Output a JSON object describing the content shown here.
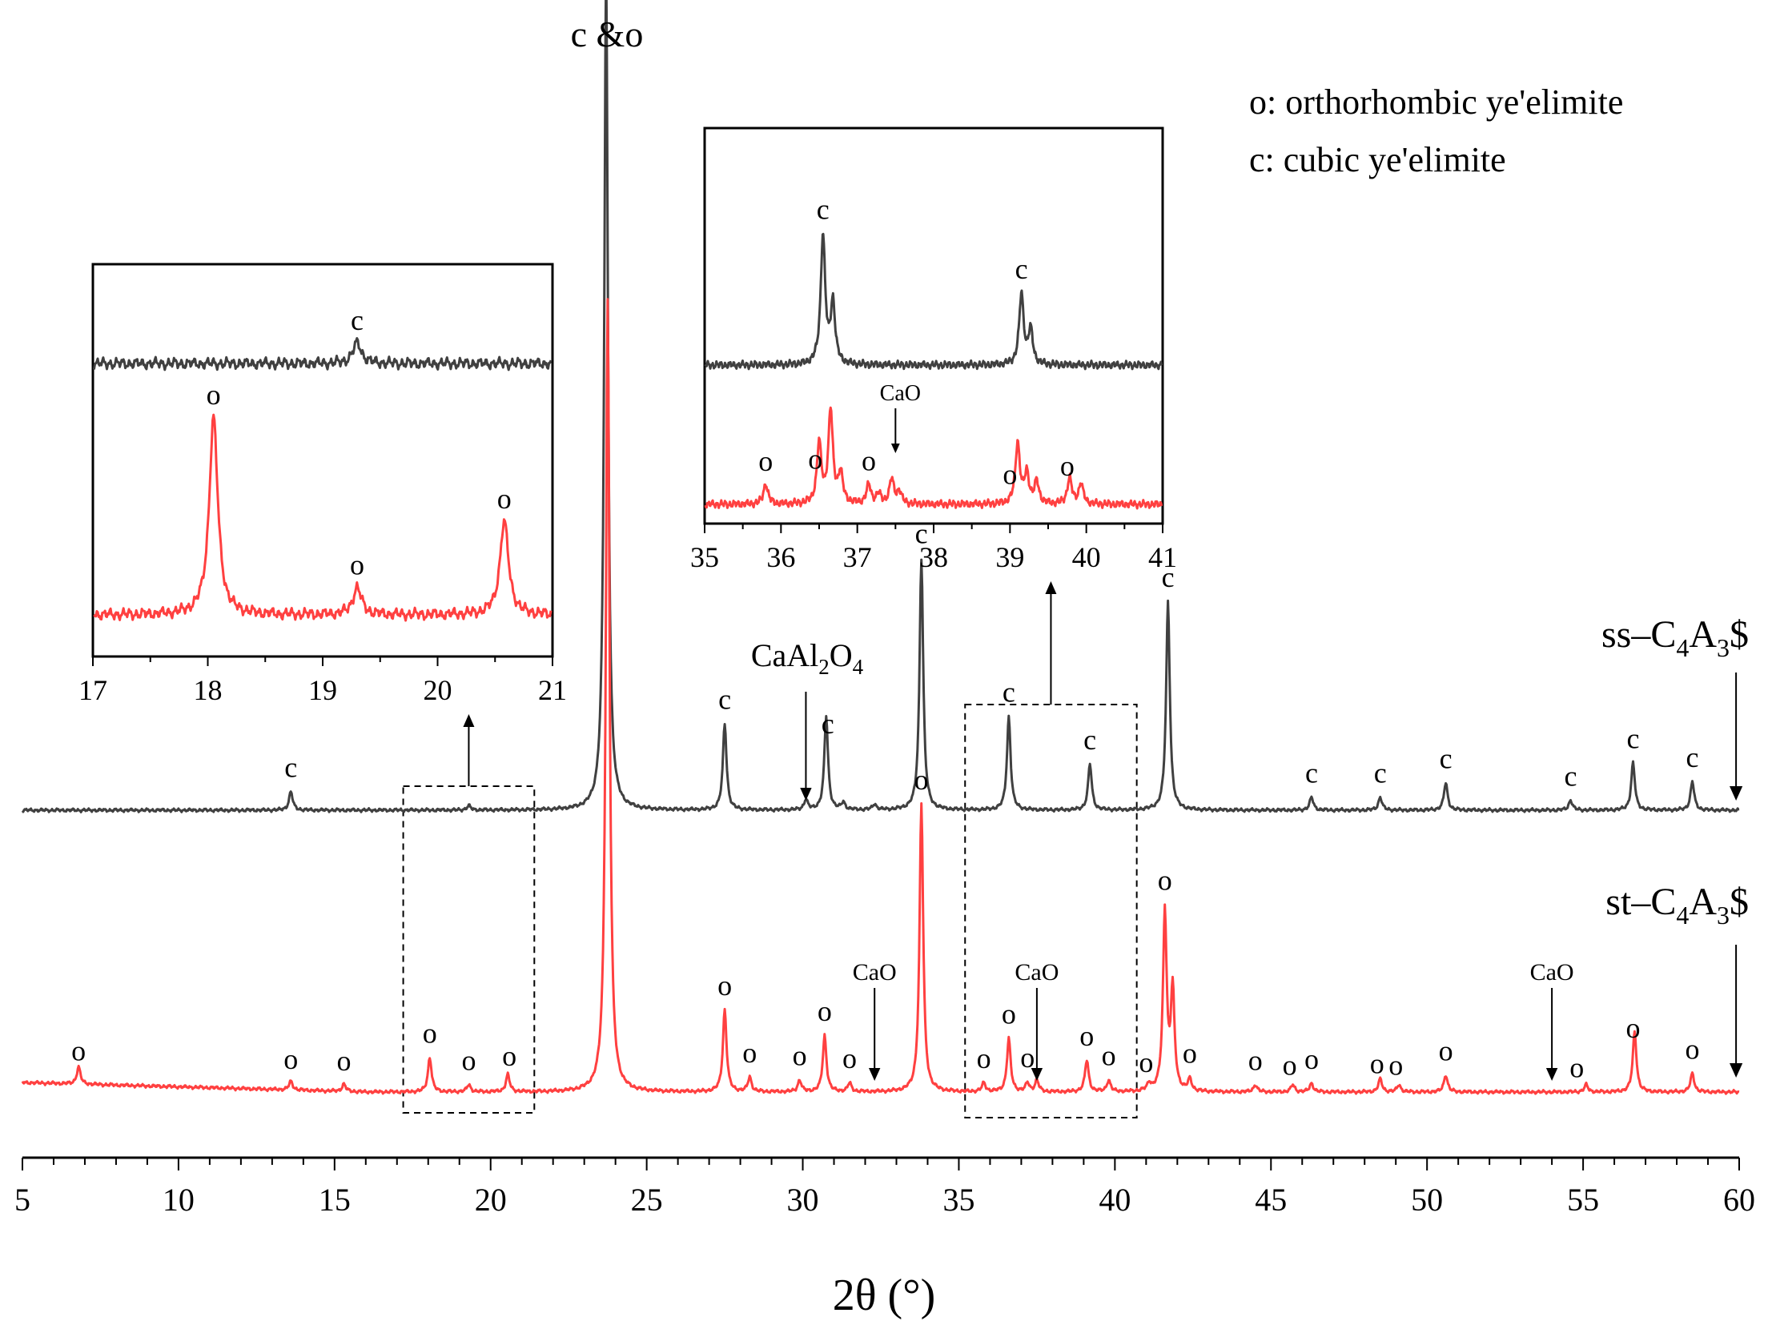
{
  "chart_data": {
    "type": "line",
    "title": "",
    "xlabel": "2θ (°)",
    "ylabel": "",
    "xlim": [
      5,
      60
    ],
    "xticks": [
      5,
      10,
      15,
      20,
      25,
      30,
      35,
      40,
      45,
      50,
      55,
      60
    ],
    "legend_text": [
      "o: orthorhombic ye'elimite",
      "c: cubic ye'elimite"
    ],
    "series": [
      {
        "name": "ss–C4A3$",
        "label_main": "ss–C",
        "label_sub1": "4",
        "label_mid": "A",
        "label_sub2": "3",
        "label_end": "$",
        "color": "#404040",
        "baseline": 0,
        "peaks": [
          [
            13.6,
            1.3
          ],
          [
            19.3,
            0.3
          ],
          [
            23.7,
            59
          ],
          [
            27.5,
            6
          ],
          [
            30.1,
            0.7
          ],
          [
            30.75,
            6.5
          ],
          [
            31.3,
            0.5
          ],
          [
            32.3,
            0.4
          ],
          [
            33.8,
            17.5
          ],
          [
            36.6,
            6.5
          ],
          [
            39.2,
            3.2
          ],
          [
            41.7,
            14.5
          ],
          [
            46.3,
            0.9
          ],
          [
            48.5,
            0.9
          ],
          [
            50.6,
            1.9
          ],
          [
            54.6,
            0.7
          ],
          [
            56.6,
            3.3
          ],
          [
            58.5,
            2.0
          ]
        ],
        "peak_labels": [
          [
            "c",
            13.6
          ],
          [
            "c",
            27.5
          ],
          [
            "c",
            30.8
          ],
          [
            "c",
            33.8
          ],
          [
            "c",
            36.6
          ],
          [
            "c",
            39.2
          ],
          [
            "c",
            41.7
          ],
          [
            "c",
            46.3
          ],
          [
            "c",
            48.5
          ],
          [
            "c",
            50.6
          ],
          [
            "c",
            54.6
          ],
          [
            "c",
            56.6
          ],
          [
            "c",
            58.5
          ]
        ]
      },
      {
        "name": "st–C4A3$",
        "label_main": "st–C",
        "label_sub1": "4",
        "label_mid": "A",
        "label_sub2": "3",
        "label_end": "$",
        "color": "#ff4040",
        "baseline": 0,
        "peaks": [
          [
            6.8,
            1.2
          ],
          [
            13.6,
            0.6
          ],
          [
            15.3,
            0.5
          ],
          [
            18.05,
            2.4
          ],
          [
            19.3,
            0.5
          ],
          [
            20.55,
            1.2
          ],
          [
            23.75,
            55
          ],
          [
            27.5,
            5.7
          ],
          [
            28.3,
            1.0
          ],
          [
            29.9,
            0.8
          ],
          [
            30.7,
            3.9
          ],
          [
            31.5,
            0.6
          ],
          [
            33.8,
            20
          ],
          [
            35.8,
            0.6
          ],
          [
            36.6,
            3.7
          ],
          [
            37.2,
            0.6
          ],
          [
            37.5,
            0.8
          ],
          [
            39.1,
            2.2
          ],
          [
            39.8,
            0.8
          ],
          [
            41.1,
            0.5
          ],
          [
            41.6,
            12.5
          ],
          [
            41.85,
            7
          ],
          [
            42.4,
            0.8
          ],
          [
            44.5,
            0.5
          ],
          [
            45.7,
            0.5
          ],
          [
            46.3,
            0.6
          ],
          [
            48.5,
            0.9
          ],
          [
            49.1,
            0.5
          ],
          [
            50.6,
            1.2
          ],
          [
            55.1,
            0.5
          ],
          [
            56.65,
            4.2
          ],
          [
            58.5,
            1.3
          ]
        ],
        "peak_labels": [
          [
            "o",
            6.8
          ],
          [
            "o",
            13.6
          ],
          [
            "o",
            15.3
          ],
          [
            "o",
            18.05
          ],
          [
            "o",
            19.3
          ],
          [
            "o",
            20.6
          ],
          [
            "o",
            27.5
          ],
          [
            "o",
            28.3
          ],
          [
            "o",
            29.9
          ],
          [
            "o",
            30.7
          ],
          [
            "o",
            31.5
          ],
          [
            "o",
            33.8
          ],
          [
            "o",
            35.8
          ],
          [
            "o",
            36.6
          ],
          [
            "o",
            37.2
          ],
          [
            "o",
            39.1
          ],
          [
            "o",
            39.8
          ],
          [
            "o",
            41.0
          ],
          [
            "o",
            41.6
          ],
          [
            "o",
            42.4
          ],
          [
            "o",
            44.5
          ],
          [
            "o",
            45.6
          ],
          [
            "o",
            46.3
          ],
          [
            "o",
            48.4
          ],
          [
            "o",
            49.0
          ],
          [
            "o",
            50.6
          ],
          [
            "o",
            54.8
          ],
          [
            "o",
            56.6
          ],
          [
            "o",
            58.5
          ]
        ]
      }
    ],
    "main_annotations": {
      "top_peak_label": "c &o",
      "caal2o4": {
        "main": "CaAl",
        "sub1": "2",
        "mid": "O",
        "sub2": "4",
        "x": 30.1
      },
      "cao_labels": [
        {
          "text": "CaO",
          "x": 32.3
        },
        {
          "text": "CaO",
          "x": 37.5
        },
        {
          "text": "CaO",
          "x": 54.0
        }
      ]
    },
    "zoom_regions": [
      [
        17.2,
        21.4
      ],
      [
        35.2,
        40.7
      ]
    ],
    "insets": [
      {
        "name": "inset-17-21",
        "xlim": [
          17,
          21
        ],
        "xticks": [
          17,
          18,
          19,
          20,
          21
        ],
        "upper_peaks": [
          [
            19.3,
            1.0
          ]
        ],
        "lower_peaks": [
          [
            18.05,
            9.5
          ],
          [
            19.3,
            1.3
          ],
          [
            20.58,
            4.5
          ]
        ],
        "labels": [
          {
            "text": "c",
            "x": 19.3,
            "trace": "upper"
          },
          {
            "text": "o",
            "x": 18.05,
            "trace": "lower"
          },
          {
            "text": "o",
            "x": 19.3,
            "trace": "lower"
          },
          {
            "text": "o",
            "x": 20.58,
            "trace": "lower"
          }
        ]
      },
      {
        "name": "inset-35-41",
        "xlim": [
          35,
          41
        ],
        "xticks": [
          35,
          36,
          37,
          38,
          39,
          40,
          41
        ],
        "upper_peaks": [
          [
            36.55,
            9.5
          ],
          [
            36.68,
            4.5
          ],
          [
            39.15,
            5.2
          ],
          [
            39.27,
            2.5
          ]
        ],
        "lower_peaks": [
          [
            35.8,
            1.5
          ],
          [
            36.5,
            4.4
          ],
          [
            36.65,
            6.8
          ],
          [
            36.78,
            2.2
          ],
          [
            37.15,
            1.4
          ],
          [
            37.28,
            0.7
          ],
          [
            37.45,
            1.8
          ],
          [
            37.55,
            0.9
          ],
          [
            39.1,
            4.5
          ],
          [
            39.22,
            2.2
          ],
          [
            39.35,
            1.6
          ],
          [
            39.78,
            1.9
          ],
          [
            39.93,
            1.5
          ]
        ],
        "labels": [
          {
            "text": "c",
            "x": 36.55,
            "trace": "upper"
          },
          {
            "text": "c",
            "x": 39.15,
            "trace": "upper"
          },
          {
            "text": "o",
            "x": 35.8,
            "trace": "lower"
          },
          {
            "text": "o",
            "x": 36.45,
            "trace": "lower"
          },
          {
            "text": "o",
            "x": 37.15,
            "trace": "lower"
          },
          {
            "text": "o",
            "x": 39.0,
            "trace": "lower"
          },
          {
            "text": "o",
            "x": 39.75,
            "trace": "lower"
          }
        ],
        "cao": {
          "text": "CaO",
          "x": 37.5
        }
      }
    ]
  }
}
